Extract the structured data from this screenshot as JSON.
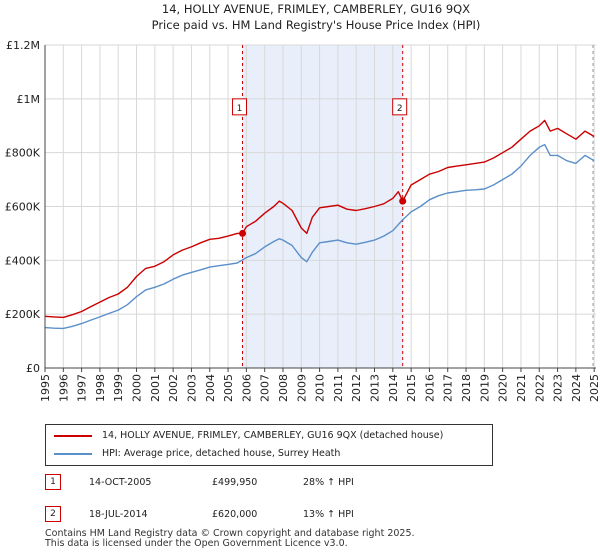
{
  "chart_data": {
    "type": "line",
    "title": "14, HOLLY AVENUE, FRIMLEY, CAMBERLEY, GU16 9QX",
    "subtitle": "Price paid vs. HM Land Registry's House Price Index (HPI)",
    "x_ticks": [
      "1995",
      "1996",
      "1997",
      "1998",
      "1999",
      "2000",
      "2001",
      "2002",
      "2003",
      "2004",
      "2005",
      "2006",
      "2007",
      "2008",
      "2009",
      "2010",
      "2011",
      "2012",
      "2013",
      "2014",
      "2015",
      "2016",
      "2017",
      "2018",
      "2019",
      "2020",
      "2021",
      "2022",
      "2023",
      "2024",
      "2025"
    ],
    "y_ticks": [
      {
        "value": 0,
        "label": "£0"
      },
      {
        "value": 200000,
        "label": "£200K"
      },
      {
        "value": 400000,
        "label": "£400K"
      },
      {
        "value": 600000,
        "label": "£600K"
      },
      {
        "value": 800000,
        "label": "£800K"
      },
      {
        "value": 1000000,
        "label": "£1M"
      },
      {
        "value": 1200000,
        "label": "£1.2M"
      }
    ],
    "xlim": [
      1995,
      2025.1
    ],
    "ylim": [
      0,
      1200000
    ],
    "grid": true,
    "shaded_period": [
      2005.79,
      2014.54
    ],
    "series": [
      {
        "name": "14, HOLLY AVENUE, FRIMLEY, CAMBERLEY, GU16 9QX (detached house)",
        "color": "#cc0000",
        "x": [
          1995.0,
          1995.5,
          1996.0,
          1996.5,
          1997.0,
          1997.5,
          1998.0,
          1998.5,
          1999.0,
          1999.5,
          2000.0,
          2000.5,
          2001.0,
          2001.5,
          2002.0,
          2002.5,
          2003.0,
          2003.5,
          2004.0,
          2004.5,
          2005.0,
          2005.5,
          2005.79,
          2006.0,
          2006.5,
          2007.0,
          2007.5,
          2007.8,
          2008.0,
          2008.5,
          2009.0,
          2009.3,
          2009.6,
          2010.0,
          2010.5,
          2011.0,
          2011.5,
          2012.0,
          2012.5,
          2013.0,
          2013.5,
          2014.0,
          2014.3,
          2014.54,
          2015.0,
          2015.5,
          2016.0,
          2016.5,
          2017.0,
          2017.5,
          2018.0,
          2018.5,
          2019.0,
          2019.5,
          2020.0,
          2020.5,
          2021.0,
          2021.5,
          2022.0,
          2022.3,
          2022.6,
          2023.0,
          2023.5,
          2024.0,
          2024.5,
          2025.0
        ],
        "values": [
          192000,
          190000,
          188000,
          198000,
          210000,
          228000,
          245000,
          262000,
          275000,
          300000,
          340000,
          370000,
          378000,
          395000,
          420000,
          438000,
          450000,
          465000,
          478000,
          482000,
          490000,
          500000,
          499950,
          525000,
          545000,
          575000,
          600000,
          620000,
          612000,
          585000,
          520000,
          500000,
          560000,
          595000,
          600000,
          605000,
          590000,
          585000,
          592000,
          600000,
          610000,
          630000,
          655000,
          620000,
          680000,
          700000,
          720000,
          730000,
          745000,
          750000,
          755000,
          760000,
          765000,
          780000,
          800000,
          820000,
          850000,
          880000,
          900000,
          920000,
          880000,
          890000,
          870000,
          850000,
          880000,
          860000
        ]
      },
      {
        "name": "HPI: Average price, detached house, Surrey Heath",
        "color": "#5b8fc9",
        "x": [
          1995.0,
          1995.5,
          1996.0,
          1996.5,
          1997.0,
          1997.5,
          1998.0,
          1998.5,
          1999.0,
          1999.5,
          2000.0,
          2000.5,
          2001.0,
          2001.5,
          2002.0,
          2002.5,
          2003.0,
          2003.5,
          2004.0,
          2004.5,
          2005.0,
          2005.5,
          2006.0,
          2006.5,
          2007.0,
          2007.5,
          2007.8,
          2008.0,
          2008.5,
          2009.0,
          2009.3,
          2009.6,
          2010.0,
          2010.5,
          2011.0,
          2011.5,
          2012.0,
          2012.5,
          2013.0,
          2013.5,
          2014.0,
          2014.5,
          2015.0,
          2015.5,
          2016.0,
          2016.5,
          2017.0,
          2017.5,
          2018.0,
          2018.5,
          2019.0,
          2019.5,
          2020.0,
          2020.5,
          2021.0,
          2021.5,
          2022.0,
          2022.3,
          2022.6,
          2023.0,
          2023.5,
          2024.0,
          2024.5,
          2025.0
        ],
        "values": [
          150000,
          148000,
          147000,
          155000,
          165000,
          178000,
          190000,
          203000,
          215000,
          235000,
          265000,
          290000,
          300000,
          312000,
          330000,
          345000,
          355000,
          365000,
          375000,
          380000,
          385000,
          390000,
          410000,
          425000,
          450000,
          470000,
          480000,
          475000,
          455000,
          410000,
          395000,
          430000,
          465000,
          470000,
          475000,
          465000,
          460000,
          467000,
          475000,
          490000,
          510000,
          548000,
          580000,
          600000,
          625000,
          640000,
          650000,
          655000,
          660000,
          662000,
          665000,
          680000,
          700000,
          720000,
          750000,
          790000,
          820000,
          830000,
          790000,
          790000,
          770000,
          760000,
          790000,
          770000
        ]
      }
    ],
    "sales": [
      {
        "num": "1",
        "x": 2005.79,
        "value": 499950,
        "date": "14-OCT-2005",
        "price": "£499,950",
        "hpi": "28% ↑ HPI"
      },
      {
        "num": "2",
        "x": 2014.54,
        "value": 620000,
        "date": "18-JUL-2014",
        "price": "£620,000",
        "hpi": "13% ↑ HPI"
      }
    ],
    "colors": {
      "shade": "#e8eefa",
      "grid": "#d8d8d8",
      "marker_line": "#cc0000"
    }
  },
  "legend": {
    "property_label": "14, HOLLY AVENUE, FRIMLEY, CAMBERLEY, GU16 9QX (detached house)",
    "hpi_label": "HPI: Average price, detached house, Surrey Heath"
  },
  "footer": {
    "line1": "Contains HM Land Registry data © Crown copyright and database right 2025.",
    "line2": "This data is licensed under the Open Government Licence v3.0."
  }
}
